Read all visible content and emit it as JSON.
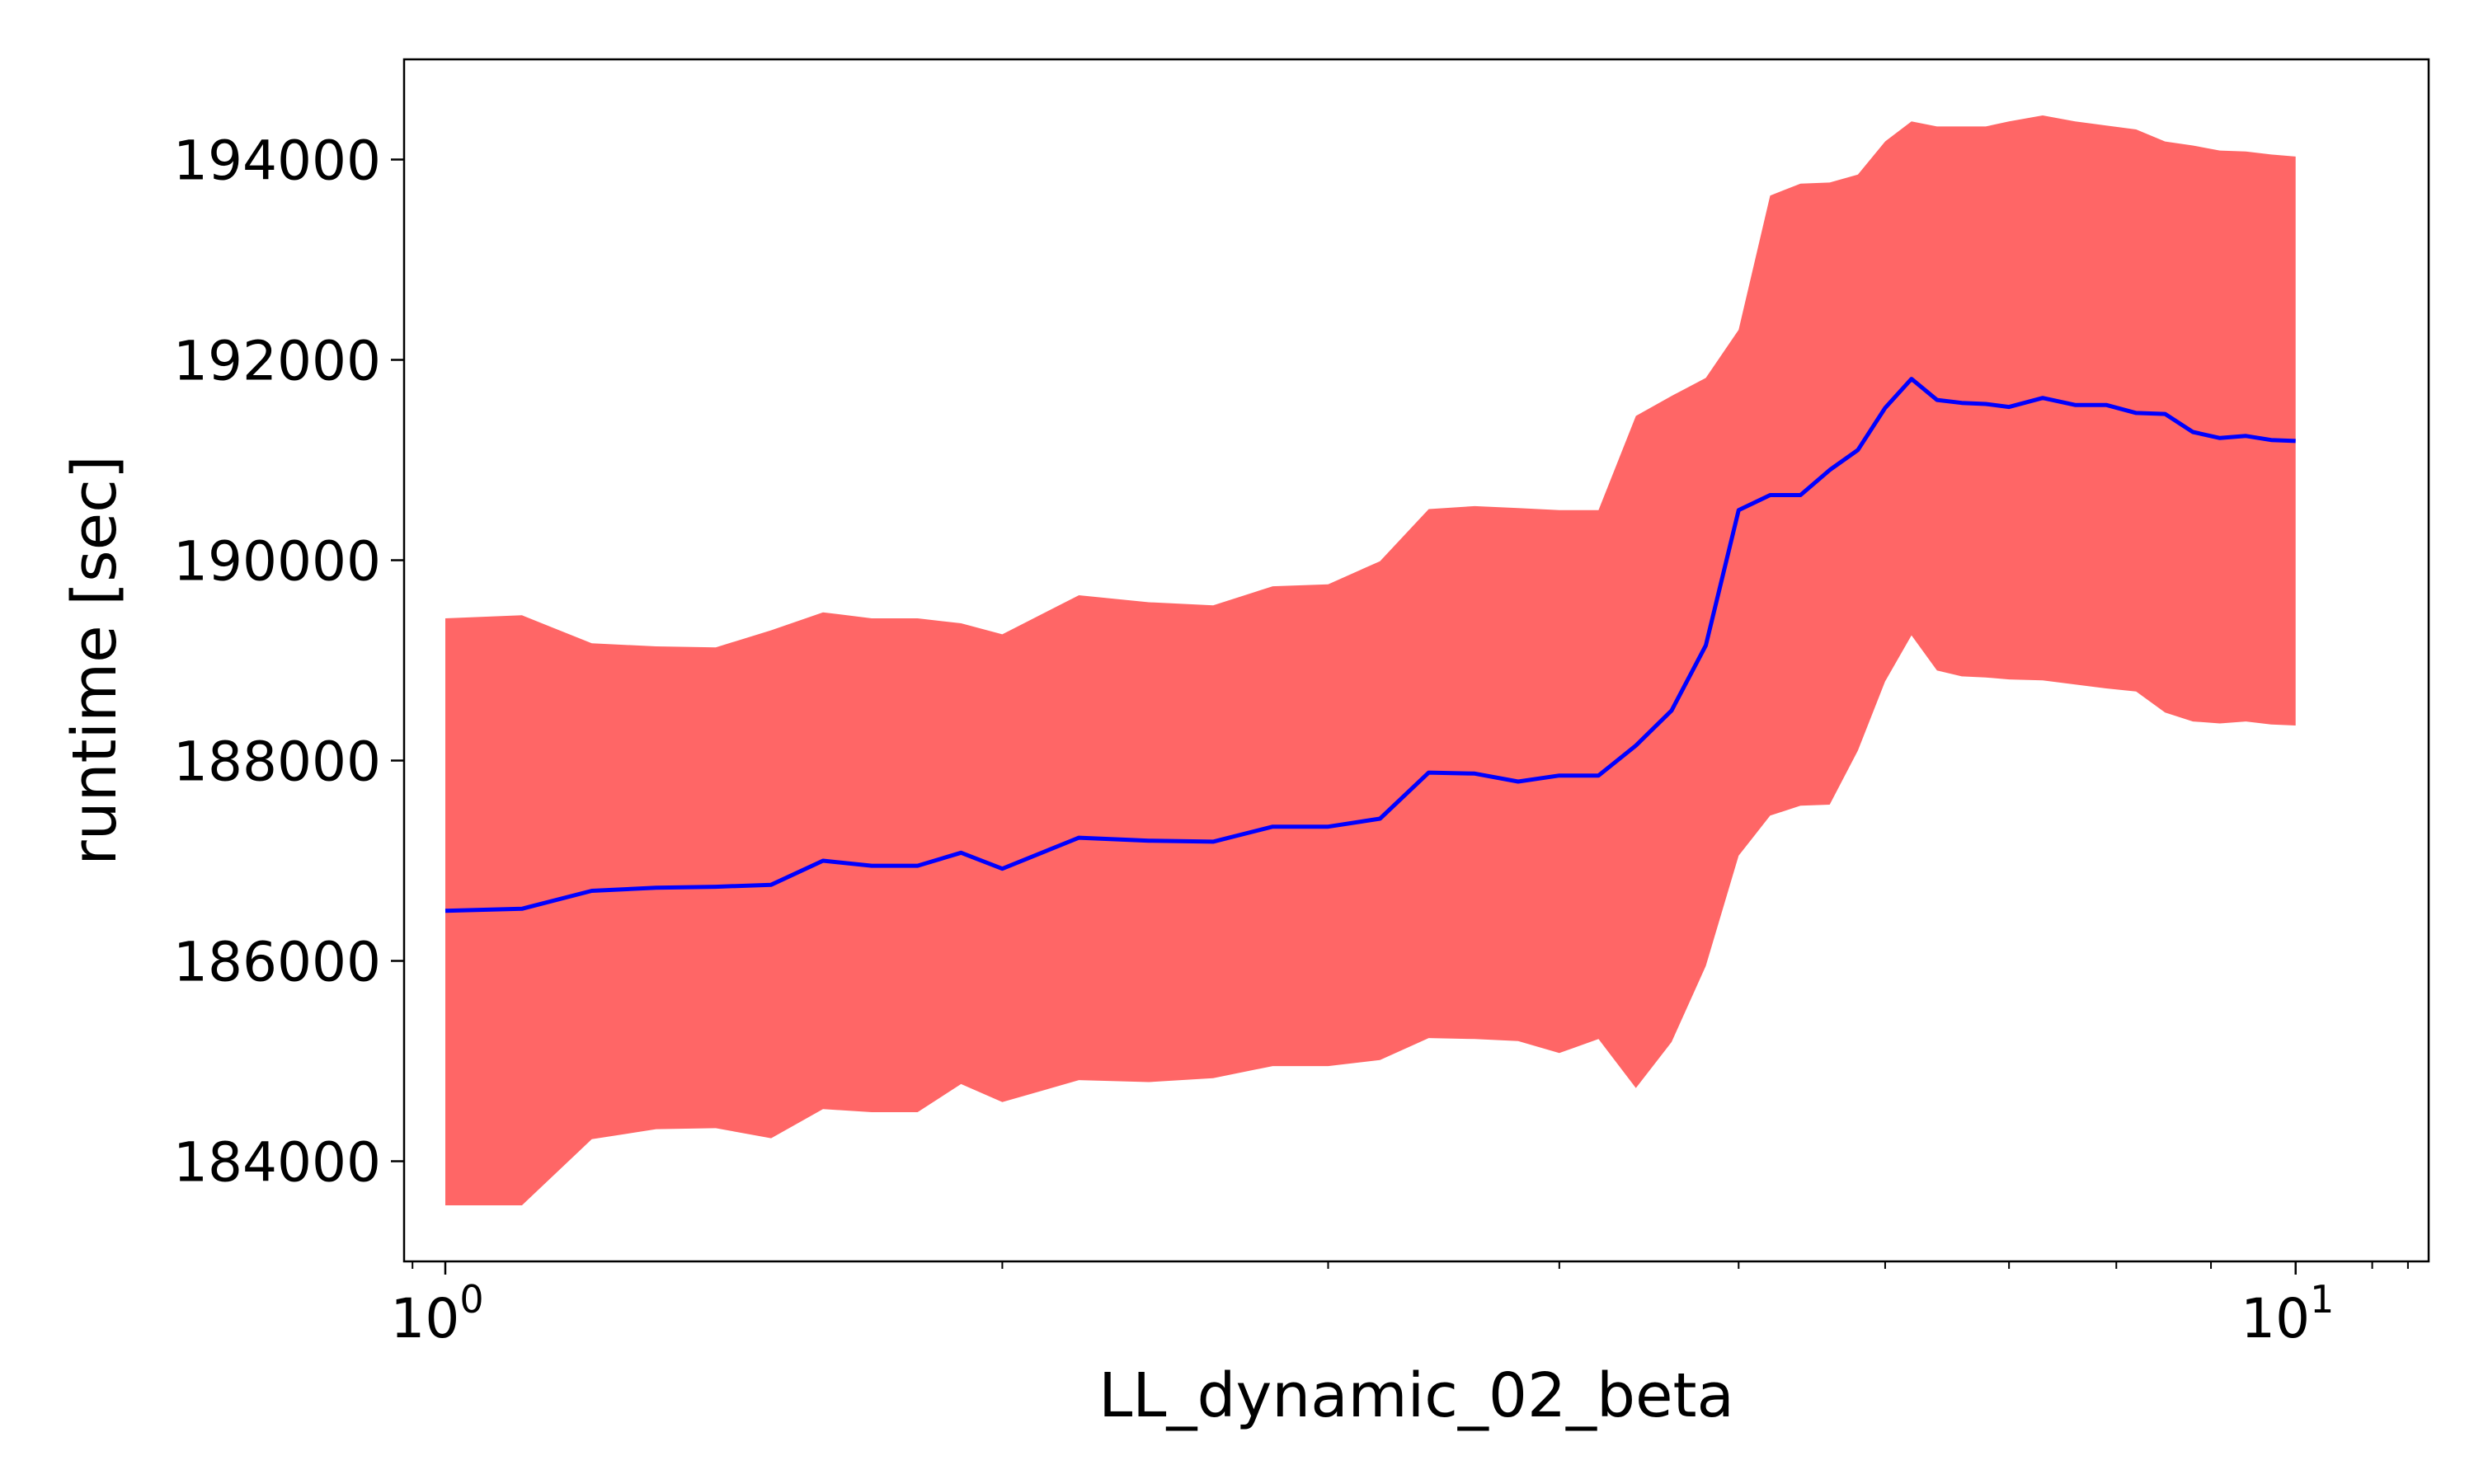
{
  "chart_data": {
    "type": "area",
    "title": "",
    "xlabel": "LL_dynamic_02_beta",
    "ylabel": "runtime [sec]",
    "x_scale": "log",
    "xlim": [
      0.95,
      11.8
    ],
    "ylim": [
      183000,
      195000
    ],
    "x_ticks": [
      {
        "value": 1,
        "base": "10",
        "exp": "0"
      },
      {
        "value": 10,
        "base": "10",
        "exp": "1"
      }
    ],
    "y_ticks": [
      {
        "value": 184000,
        "label": "184000"
      },
      {
        "value": 186000,
        "label": "186000"
      },
      {
        "value": 188000,
        "label": "188000"
      },
      {
        "value": 190000,
        "label": "190000"
      },
      {
        "value": 192000,
        "label": "192000"
      },
      {
        "value": 194000,
        "label": "194000"
      }
    ],
    "grid": false,
    "legend": "none",
    "colors": {
      "line": "#0000ff",
      "band": "#ff6666"
    },
    "x": [
      1.0,
      1.1,
      1.2,
      1.3,
      1.4,
      1.5,
      1.6,
      1.7,
      1.8,
      1.9,
      2.0,
      2.2,
      2.4,
      2.6,
      2.8,
      3.0,
      3.2,
      3.4,
      3.6,
      3.8,
      4.0,
      4.2,
      4.4,
      4.6,
      4.8,
      5.0,
      5.2,
      5.4,
      5.6,
      5.8,
      6.0,
      6.2,
      6.4,
      6.6,
      6.8,
      7.0,
      7.3,
      7.6,
      7.9,
      8.2,
      8.5,
      8.8,
      9.1,
      9.4,
      9.7,
      10.0
    ],
    "series": [
      {
        "mean": [
          186500,
          186520,
          186700,
          186730,
          186740,
          186760,
          187000,
          186950,
          186950,
          187080,
          186920,
          187230,
          187200,
          187190,
          187340,
          187340,
          187420,
          187880,
          187870,
          187790,
          187850,
          187850,
          188150,
          188500,
          189150,
          190500,
          190650,
          190650,
          190900,
          191100,
          191520,
          191810,
          191600,
          191570,
          191560,
          191530,
          191620,
          191550,
          191550,
          191470,
          191460,
          191280,
          191220,
          191240,
          191200,
          191190
        ],
        "upper": [
          189420,
          189450,
          189170,
          189140,
          189130,
          189300,
          189480,
          189420,
          189420,
          189370,
          189260,
          189650,
          189580,
          189550,
          189740,
          189760,
          189990,
          190510,
          190540,
          190520,
          190500,
          190500,
          191440,
          191640,
          191820,
          192300,
          193640,
          193760,
          193770,
          193850,
          194180,
          194380,
          194330,
          194330,
          194330,
          194380,
          194440,
          194380,
          194340,
          194300,
          194180,
          194140,
          194090,
          194080,
          194050,
          194030
        ],
        "lower": [
          183560,
          183560,
          184220,
          184320,
          184330,
          184230,
          184520,
          184490,
          184490,
          184770,
          184590,
          184810,
          184790,
          184830,
          184950,
          184950,
          185010,
          185230,
          185220,
          185200,
          185080,
          185220,
          184730,
          185190,
          185950,
          187050,
          187450,
          187550,
          187560,
          188100,
          188790,
          189250,
          188900,
          188840,
          188830,
          188810,
          188800,
          188760,
          188720,
          188690,
          188480,
          188390,
          188370,
          188390,
          188360,
          188350
        ]
      }
    ]
  }
}
